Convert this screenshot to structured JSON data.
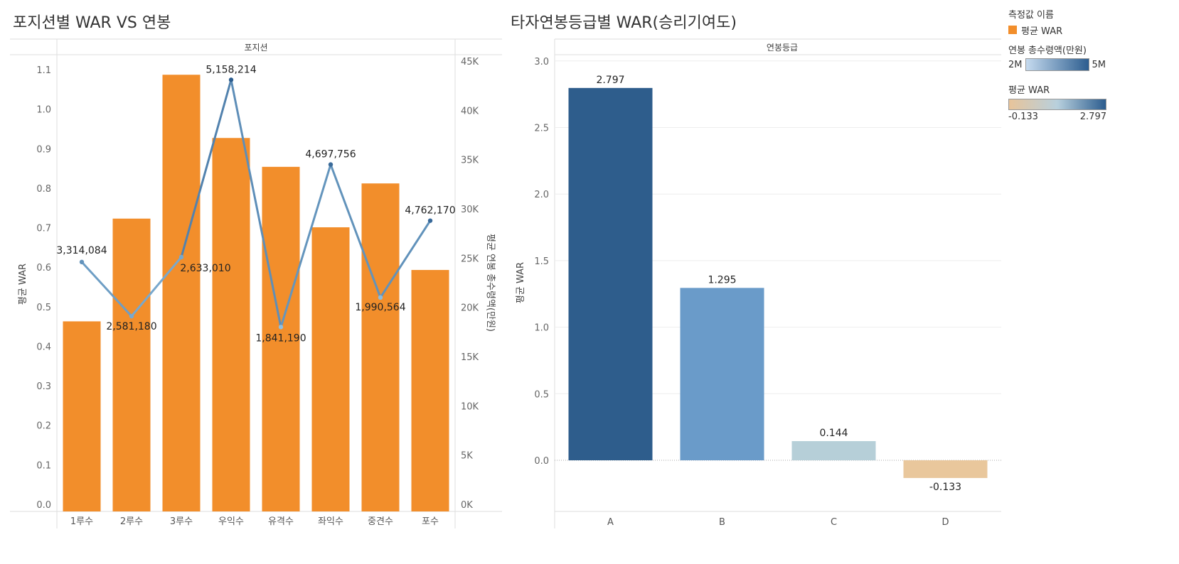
{
  "left_title": "포지션별 WAR VS 연봉",
  "right_title": "타자연봉등급별 WAR(승리기여도)",
  "legend": {
    "measure_title": "측정값 이름",
    "measure_item": "평균 WAR",
    "measure_color": "#f28e2b",
    "salary_title": "연봉 총수령액(만원)",
    "salary_min": "2M",
    "salary_max": "5M",
    "salary_colors": [
      "#c6dbef",
      "#2c5d8f"
    ],
    "war_title": "평균 WAR",
    "war_min": "-0.133",
    "war_max": "2.797",
    "war_colors": [
      "#e8c49a",
      "#b8d0dd",
      "#2c5d8f"
    ]
  },
  "chart_data": [
    {
      "type": "bar",
      "header": "포지션",
      "categories": [
        "1루수",
        "2루수",
        "3루수",
        "우익수",
        "유격수",
        "좌익수",
        "중견수",
        "포수"
      ],
      "series": [
        {
          "name": "평균 WAR",
          "type": "bar",
          "axis": "left",
          "color": "#f28e2b",
          "values": [
            0.463,
            0.723,
            1.087,
            0.927,
            0.854,
            0.701,
            0.812,
            0.593
          ]
        },
        {
          "name": "평균 연봉 총수령액(만원)",
          "type": "line",
          "axis": "right",
          "values": [
            3314084,
            2581180,
            2633010,
            5158214,
            1841190,
            4697756,
            1990564,
            4762170
          ],
          "labels": [
            "3,314,084",
            "2,581,180",
            "2,633,010",
            "5,158,214",
            "1,841,190",
            "4,697,756",
            "1,990,564",
            "4,762,170"
          ],
          "line_values_display": [
            24600,
            19100,
            25100,
            43100,
            18000,
            34500,
            21000,
            28800
          ]
        }
      ],
      "ylabel": "평균 WAR",
      "ylim": [
        0,
        1.1
      ],
      "yticks": [
        "0.0",
        "0.1",
        "0.2",
        "0.3",
        "0.4",
        "0.5",
        "0.6",
        "0.7",
        "0.8",
        "0.9",
        "1.0",
        "1.1"
      ],
      "y2label": "평균 연봉 총수령액(만원)",
      "y2lim": [
        0,
        45000
      ],
      "y2ticks": [
        "0K",
        "5K",
        "10K",
        "15K",
        "20K",
        "25K",
        "30K",
        "35K",
        "40K",
        "45K"
      ]
    },
    {
      "type": "bar",
      "header": "연봉등급",
      "categories": [
        "A",
        "B",
        "C",
        "D"
      ],
      "values": [
        2.797,
        1.295,
        0.144,
        -0.133
      ],
      "labels": [
        "2.797",
        "1.295",
        "0.144",
        "-0.133"
      ],
      "colors": [
        "#2e5d8c",
        "#6a9bc9",
        "#b6cfd8",
        "#e9c79c"
      ],
      "ylabel": "평균 WAR",
      "ylim": [
        -0.4,
        3.0
      ],
      "yticks": [
        "0.0",
        "0.5",
        "1.0",
        "1.5",
        "2.0",
        "2.5",
        "3.0"
      ],
      "grid": true
    }
  ]
}
